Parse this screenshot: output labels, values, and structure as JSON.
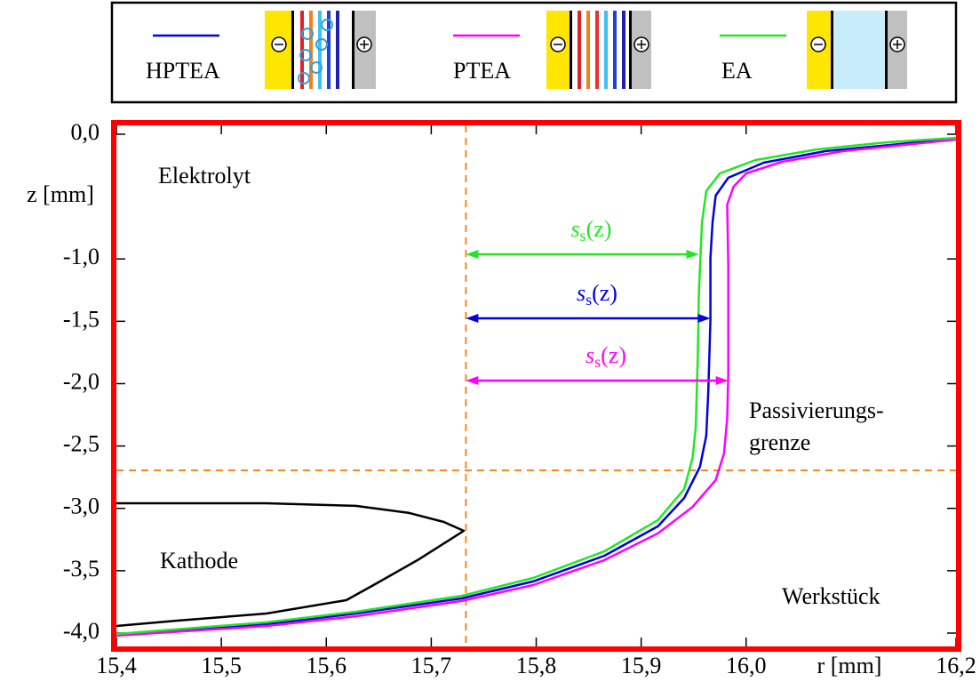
{
  "chart_data": {
    "type": "line",
    "x_label": "r [mm]",
    "y_label": "z [mm]",
    "xlim": [
      15.4,
      16.2
    ],
    "ylim": [
      -4.107,
      0.071
    ],
    "xticks": [
      {
        "value": 15.4,
        "label": "15,4"
      },
      {
        "value": 15.5,
        "label": "15,5"
      },
      {
        "value": 15.6,
        "label": "15,6"
      },
      {
        "value": 15.7,
        "label": "15,7"
      },
      {
        "value": 15.8,
        "label": "15,8"
      },
      {
        "value": 15.9,
        "label": "15,9"
      },
      {
        "value": 16.0,
        "label": "16,0"
      },
      {
        "value": 16.2,
        "label": "16,2"
      }
    ],
    "yticks": [
      {
        "value": 0,
        "label": "0,0"
      },
      {
        "value": -1,
        "label": "-1,0"
      },
      {
        "value": -1.5,
        "label": "-1,5"
      },
      {
        "value": -2,
        "label": "-2,0"
      },
      {
        "value": -2.5,
        "label": "-2,5"
      },
      {
        "value": -3,
        "label": "-3,0"
      },
      {
        "value": -3.5,
        "label": "-3,5"
      },
      {
        "value": -4,
        "label": "-4,0"
      }
    ],
    "frame_color": "#ff0000",
    "series": [
      {
        "name": "HPTEA",
        "color": "#0000e0",
        "x": [
          15.4,
          15.543,
          15.628,
          15.729,
          15.797,
          15.865,
          15.916,
          15.941,
          15.956,
          15.962,
          15.964,
          15.966,
          15.966,
          15.968,
          15.971,
          15.983,
          16.017,
          16.076,
          16.2
        ],
        "y": [
          -4.014,
          -3.929,
          -3.843,
          -3.722,
          -3.586,
          -3.38,
          -3.144,
          -2.916,
          -2.667,
          -2.417,
          -2.061,
          -1.49,
          -0.991,
          -0.706,
          -0.492,
          -0.349,
          -0.228,
          -0.135,
          -0.036
        ]
      },
      {
        "name": "PTEA",
        "color": "#ff00ff",
        "x": [
          15.4,
          15.543,
          15.628,
          15.729,
          15.797,
          15.865,
          15.916,
          15.949,
          15.971,
          15.979,
          15.982,
          15.983,
          15.983,
          15.982,
          15.988,
          16.0,
          16.034,
          16.093,
          16.2
        ],
        "y": [
          -4.021,
          -3.943,
          -3.865,
          -3.743,
          -3.615,
          -3.415,
          -3.201,
          -2.988,
          -2.774,
          -2.56,
          -2.275,
          -1.918,
          -1.062,
          -0.563,
          -0.421,
          -0.314,
          -0.221,
          -0.135,
          -0.043
        ]
      },
      {
        "name": "EA",
        "color": "#22e622",
        "x": [
          15.4,
          15.543,
          15.628,
          15.729,
          15.797,
          15.865,
          15.916,
          15.941,
          15.949,
          15.952,
          15.954,
          15.955,
          15.958,
          15.962,
          15.975,
          16.009,
          16.068,
          16.136,
          16.2
        ],
        "y": [
          -4.007,
          -3.914,
          -3.829,
          -3.701,
          -3.558,
          -3.344,
          -3.094,
          -2.845,
          -2.595,
          -2.346,
          -1.775,
          -1.276,
          -0.706,
          -0.456,
          -0.314,
          -0.207,
          -0.121,
          -0.064,
          -0.029
        ]
      },
      {
        "color": "#000000",
        "x": [
          15.4,
          15.543,
          15.628,
          15.679,
          15.712,
          15.731,
          15.687,
          15.645,
          15.619,
          15.543,
          15.458,
          15.4
        ],
        "y": [
          -2.959,
          -2.959,
          -2.98,
          -3.037,
          -3.109,
          -3.18,
          -3.415,
          -3.615,
          -3.736,
          -3.843,
          -3.9,
          -3.943
        ]
      }
    ],
    "reference_lines": {
      "r": 15.733,
      "z": -2.695,
      "color": "#f4891f"
    },
    "arrows": [
      {
        "color": "#22e622",
        "z": -0.963,
        "r": [
          15.733,
          15.955
        ],
        "label": {
          "base": "s",
          "sub": "s",
          "rest": "(z)"
        }
      },
      {
        "color": "#0000e0",
        "z": -1.476,
        "r": [
          15.733,
          15.966
        ],
        "label": {
          "base": "s",
          "sub": "s",
          "rest": "(z)"
        }
      },
      {
        "color": "#ff00ff",
        "z": -1.975,
        "r": [
          15.733,
          15.983
        ],
        "label": {
          "base": "s",
          "sub": "s",
          "rest": "(z)"
        }
      }
    ],
    "annotations": [
      {
        "text": "Elektrolyt",
        "color": "#000000"
      },
      {
        "text": "Kathode",
        "color": "#000000"
      },
      {
        "text": "Werkstück",
        "color": "#000000"
      },
      {
        "text": "Passivierungs-",
        "color": "#f4891f"
      },
      {
        "text": "grenze",
        "color": "#f4891f"
      }
    ]
  }
}
